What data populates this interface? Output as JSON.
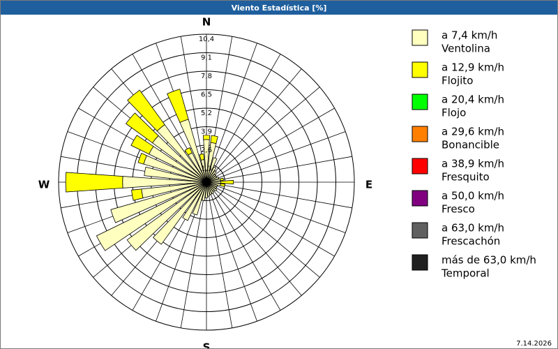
{
  "chart_data": {
    "type": "windrose",
    "title": "Viento Estadística [%]",
    "footer": "7.14.2026",
    "categories": [
      "N",
      null,
      null,
      null,
      null,
      null,
      null,
      null,
      null,
      "E",
      null,
      null,
      null,
      null,
      null,
      null,
      null,
      null,
      "S",
      null,
      null,
      null,
      null,
      null,
      null,
      null,
      null,
      "W",
      null,
      null,
      null,
      null,
      null,
      null,
      null,
      null
    ],
    "ylim": [
      0,
      10.4
    ],
    "yticks": [
      {
        "value": 1.3,
        "label": "1,3"
      },
      {
        "value": 2.6,
        "label": "2,6"
      },
      {
        "value": 3.9,
        "label": "3,9"
      },
      {
        "value": 5.2,
        "label": "5,2"
      },
      {
        "value": 6.5,
        "label": "6,5"
      },
      {
        "value": 7.8,
        "label": "7,8"
      },
      {
        "value": 9.1,
        "label": "9,1"
      },
      {
        "value": 10.4,
        "label": "10,4"
      }
    ],
    "grid": true,
    "series": [
      {
        "name": "a 7,4 km/h",
        "description": "Ventolina",
        "color": "#ffffc0",
        "values": [
          3.0,
          2.8,
          1.8,
          1.2,
          1.0,
          0.8,
          0.8,
          0.9,
          1.0,
          1.0,
          1.0,
          0.8,
          0.8,
          0.9,
          0.8,
          0.9,
          0.9,
          1.0,
          1.1,
          1.3,
          2.4,
          3.0,
          5.4,
          6.9,
          8.6,
          7.0,
          4.6,
          5.9,
          4.4,
          4.6,
          4.5,
          4.7,
          5.0,
          2.3,
          4.6,
          1.6
        ]
      },
      {
        "name": "a 12,9 km/h",
        "description": "Flojito",
        "color": "#ffff00",
        "values": [
          0.3,
          0.5,
          0,
          0,
          0,
          0,
          0,
          0,
          0.2,
          0.9,
          0.3,
          0,
          0,
          0,
          0,
          0,
          0,
          0,
          0,
          0,
          0,
          0,
          0,
          0,
          0,
          0,
          0.7,
          4.0,
          0,
          0.4,
          1.4,
          2.3,
          3.0,
          0.4,
          2.2,
          0.4
        ]
      },
      {
        "name": "a 20,4 km/h",
        "description": "Flojo",
        "color": "#00ff00",
        "values": [
          0,
          0,
          0,
          0,
          0,
          0,
          0,
          0,
          0,
          0,
          0,
          0,
          0,
          0,
          0,
          0,
          0,
          0,
          0,
          0,
          0,
          0,
          0,
          0,
          0,
          0,
          0,
          0,
          0,
          0,
          0,
          0,
          0,
          0,
          0,
          0
        ]
      },
      {
        "name": "a 29,6 km/h",
        "description": "Bonancible",
        "color": "#ff8000",
        "values": [
          0,
          0,
          0,
          0,
          0,
          0,
          0,
          0,
          0,
          0,
          0,
          0,
          0,
          0,
          0,
          0,
          0,
          0,
          0,
          0,
          0,
          0,
          0,
          0,
          0,
          0,
          0,
          0,
          0,
          0,
          0,
          0,
          0,
          0,
          0,
          0
        ]
      },
      {
        "name": "a 38,9 km/h",
        "description": "Fresquito",
        "color": "#ff0000",
        "values": [
          0,
          0,
          0,
          0,
          0,
          0,
          0,
          0,
          0,
          0,
          0,
          0,
          0,
          0,
          0,
          0,
          0,
          0,
          0,
          0,
          0,
          0,
          0,
          0,
          0,
          0,
          0,
          0,
          0,
          0,
          0,
          0,
          0,
          0,
          0,
          0
        ]
      },
      {
        "name": "a 50,0 km/h",
        "description": "Fresco",
        "color": "#800080",
        "values": [
          0,
          0,
          0,
          0,
          0,
          0,
          0,
          0,
          0,
          0,
          0,
          0,
          0,
          0,
          0,
          0,
          0,
          0,
          0,
          0,
          0,
          0,
          0,
          0,
          0,
          0,
          0,
          0,
          0,
          0,
          0,
          0,
          0,
          0,
          0,
          0
        ]
      },
      {
        "name": "a 63,0 km/h",
        "description": "Frescachón",
        "color": "#606060",
        "values": [
          0,
          0,
          0,
          0,
          0,
          0,
          0,
          0,
          0,
          0,
          0,
          0,
          0,
          0,
          0,
          0,
          0,
          0,
          0,
          0,
          0,
          0,
          0,
          0,
          0,
          0,
          0,
          0,
          0,
          0,
          0,
          0,
          0,
          0,
          0,
          0
        ]
      },
      {
        "name": "más de 63,0 km/h",
        "description": "Temporal",
        "color": "#202020",
        "values": [
          0,
          0,
          0,
          0,
          0,
          0,
          0,
          0,
          0,
          0,
          0,
          0,
          0,
          0,
          0,
          0,
          0,
          0,
          0,
          0,
          0,
          0,
          0,
          0,
          0,
          0,
          0,
          0,
          0,
          0,
          0,
          0,
          0,
          0,
          0,
          0
        ]
      }
    ]
  }
}
